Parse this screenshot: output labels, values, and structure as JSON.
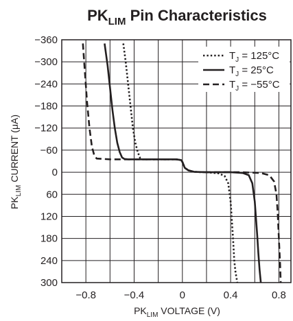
{
  "chart_data": {
    "type": "line",
    "title": {
      "main": "PK",
      "sub": "LIM",
      "rest": " Pin Characteristics"
    },
    "xlabel": {
      "main": "PK",
      "sub": "LIM",
      "rest": " VOLTAGE (V)"
    },
    "ylabel": {
      "main": "PK",
      "sub": "LIM",
      "rest": " CURRENT (μA)"
    },
    "xlim": [
      -1.0,
      0.9
    ],
    "ylim": [
      -360,
      300
    ],
    "y_inverted": true,
    "x_ticks": [
      -0.8,
      -0.4,
      0,
      0.4,
      0.8
    ],
    "x_tick_labels": [
      "−0.8",
      "−0.4",
      "0",
      "0.4",
      "0.8"
    ],
    "x_gridlines": [
      -0.8,
      -0.6,
      -0.4,
      -0.2,
      0,
      0.2,
      0.4,
      0.6,
      0.8
    ],
    "y_ticks": [
      -360,
      -300,
      -240,
      -180,
      -120,
      -60,
      0,
      60,
      120,
      180,
      240,
      300
    ],
    "y_tick_labels": [
      "−360",
      "−300",
      "−240",
      "−180",
      "−120",
      "−60",
      "0",
      "60",
      "120",
      "180",
      "240",
      "300"
    ],
    "grid": true,
    "legend_position": "top-right",
    "series": [
      {
        "name": "T_J = 125°C",
        "legend": {
          "main": "T",
          "sub": "J",
          "rest": " = 125°C"
        },
        "style": "dotted",
        "x": [
          -0.49,
          -0.47,
          -0.45,
          -0.43,
          -0.41,
          -0.39,
          -0.37,
          -0.35,
          -0.34,
          -0.2,
          -0.05,
          -0.01,
          0.0,
          0.02,
          0.05,
          0.1,
          0.2,
          0.3,
          0.35,
          0.38,
          0.4,
          0.42,
          0.43,
          0.44,
          0.45,
          0.455
        ],
        "y": [
          -350,
          -300,
          -240,
          -180,
          -120,
          -80,
          -55,
          -38,
          -35,
          -35,
          -35,
          -33,
          -28,
          -12,
          -5,
          -1,
          0,
          3,
          10,
          30,
          80,
          180,
          240,
          270,
          290,
          300
        ]
      },
      {
        "name": "T_J = 25°C",
        "legend": {
          "main": "T",
          "sub": "J",
          "rest": " = 25°C"
        },
        "style": "solid",
        "x": [
          -0.645,
          -0.62,
          -0.6,
          -0.58,
          -0.56,
          -0.54,
          -0.52,
          -0.5,
          -0.48,
          -0.45,
          -0.3,
          -0.05,
          -0.01,
          0.0,
          0.02,
          0.05,
          0.1,
          0.2,
          0.4,
          0.5,
          0.55,
          0.58,
          0.6,
          0.62,
          0.63,
          0.64,
          0.65
        ],
        "y": [
          -350,
          -290,
          -230,
          -170,
          -120,
          -80,
          -55,
          -40,
          -36,
          -35,
          -35,
          -35,
          -33,
          -28,
          -12,
          -5,
          -1,
          0,
          0,
          2,
          8,
          30,
          80,
          170,
          220,
          265,
          300
        ]
      },
      {
        "name": "T_J = −55°C",
        "legend": {
          "main": "T",
          "sub": "J",
          "rest": " = −55°C"
        },
        "style": "dashed",
        "x": [
          -0.825,
          -0.81,
          -0.79,
          -0.77,
          -0.75,
          -0.73,
          -0.71,
          -0.6,
          -0.3,
          -0.05,
          -0.01,
          0.0,
          0.02,
          0.05,
          0.1,
          0.2,
          0.5,
          0.65,
          0.72,
          0.76,
          0.78,
          0.79,
          0.8,
          0.81,
          0.815
        ],
        "y": [
          -350,
          -280,
          -190,
          -120,
          -70,
          -45,
          -37,
          -35,
          -35,
          -35,
          -33,
          -28,
          -12,
          -5,
          -1,
          0,
          0,
          2,
          8,
          25,
          60,
          110,
          180,
          250,
          300
        ]
      }
    ]
  }
}
